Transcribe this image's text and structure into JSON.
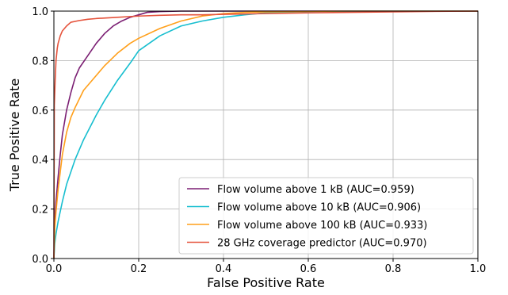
{
  "chart_data": {
    "type": "line",
    "title": "",
    "xlabel": "False Positive Rate",
    "ylabel": "True Positive Rate",
    "xlim": [
      0.0,
      1.0
    ],
    "ylim": [
      0.0,
      1.0
    ],
    "x_ticks": [
      0.0,
      0.2,
      0.4,
      0.6,
      0.8,
      1.0
    ],
    "y_ticks": [
      0.0,
      0.2,
      0.4,
      0.6,
      0.8,
      1.0
    ],
    "x_tick_labels": [
      "0.0",
      "0.2",
      "0.4",
      "0.6",
      "0.8",
      "1.0"
    ],
    "y_tick_labels": [
      "0.0",
      "0.2",
      "0.4",
      "0.6",
      "0.8",
      "1.0"
    ],
    "grid": true,
    "legend_position": "lower-right",
    "series": [
      {
        "name": "Flow volume above 1 kB (AUC=0.959)",
        "color": "#7b1f73",
        "points": [
          [
            0.0,
            0.0
          ],
          [
            0.002,
            0.15
          ],
          [
            0.005,
            0.23
          ],
          [
            0.01,
            0.33
          ],
          [
            0.015,
            0.42
          ],
          [
            0.02,
            0.5
          ],
          [
            0.03,
            0.6
          ],
          [
            0.04,
            0.67
          ],
          [
            0.05,
            0.73
          ],
          [
            0.06,
            0.77
          ],
          [
            0.08,
            0.82
          ],
          [
            0.1,
            0.87
          ],
          [
            0.12,
            0.91
          ],
          [
            0.14,
            0.94
          ],
          [
            0.16,
            0.96
          ],
          [
            0.18,
            0.975
          ],
          [
            0.2,
            0.985
          ],
          [
            0.22,
            0.995
          ],
          [
            0.25,
            0.998
          ],
          [
            0.3,
            1.0
          ],
          [
            1.0,
            1.0
          ]
        ]
      },
      {
        "name": "Flow volume above 10 kB (AUC=0.906)",
        "color": "#17becf",
        "points": [
          [
            0.0,
            0.0
          ],
          [
            0.002,
            0.06
          ],
          [
            0.005,
            0.1
          ],
          [
            0.01,
            0.15
          ],
          [
            0.02,
            0.23
          ],
          [
            0.03,
            0.3
          ],
          [
            0.05,
            0.4
          ],
          [
            0.07,
            0.48
          ],
          [
            0.1,
            0.58
          ],
          [
            0.12,
            0.64
          ],
          [
            0.15,
            0.72
          ],
          [
            0.18,
            0.79
          ],
          [
            0.2,
            0.84
          ],
          [
            0.25,
            0.9
          ],
          [
            0.3,
            0.94
          ],
          [
            0.35,
            0.96
          ],
          [
            0.4,
            0.975
          ],
          [
            0.45,
            0.985
          ],
          [
            0.5,
            0.993
          ],
          [
            0.6,
            0.998
          ],
          [
            0.7,
            1.0
          ],
          [
            1.0,
            1.0
          ]
        ]
      },
      {
        "name": "Flow volume above 100 kB (AUC=0.933)",
        "color": "#ff9f1a",
        "points": [
          [
            0.0,
            0.0
          ],
          [
            0.002,
            0.12
          ],
          [
            0.005,
            0.19
          ],
          [
            0.01,
            0.28
          ],
          [
            0.015,
            0.35
          ],
          [
            0.02,
            0.42
          ],
          [
            0.03,
            0.51
          ],
          [
            0.04,
            0.57
          ],
          [
            0.05,
            0.61
          ],
          [
            0.07,
            0.68
          ],
          [
            0.1,
            0.74
          ],
          [
            0.12,
            0.78
          ],
          [
            0.15,
            0.83
          ],
          [
            0.18,
            0.87
          ],
          [
            0.2,
            0.89
          ],
          [
            0.25,
            0.93
          ],
          [
            0.3,
            0.96
          ],
          [
            0.35,
            0.98
          ],
          [
            0.4,
            0.99
          ],
          [
            0.45,
            0.995
          ],
          [
            0.5,
            0.997
          ],
          [
            0.6,
            0.999
          ],
          [
            0.7,
            1.0
          ],
          [
            1.0,
            1.0
          ]
        ]
      },
      {
        "name": "28 GHz coverage predictor (AUC=0.970)",
        "color": "#e5533c",
        "points": [
          [
            0.0,
            0.0
          ],
          [
            0.001,
            0.62
          ],
          [
            0.003,
            0.72
          ],
          [
            0.005,
            0.8
          ],
          [
            0.008,
            0.85
          ],
          [
            0.01,
            0.87
          ],
          [
            0.015,
            0.9
          ],
          [
            0.02,
            0.92
          ],
          [
            0.03,
            0.94
          ],
          [
            0.04,
            0.955
          ],
          [
            0.06,
            0.962
          ],
          [
            0.08,
            0.967
          ],
          [
            0.1,
            0.97
          ],
          [
            0.15,
            0.975
          ],
          [
            0.2,
            0.98
          ],
          [
            0.25,
            0.983
          ],
          [
            0.3,
            0.985
          ],
          [
            0.35,
            0.985
          ],
          [
            0.4,
            0.987
          ],
          [
            0.5,
            0.99
          ],
          [
            0.6,
            0.993
          ],
          [
            0.7,
            0.995
          ],
          [
            0.8,
            0.997
          ],
          [
            0.9,
            0.999
          ],
          [
            1.0,
            1.0
          ]
        ]
      }
    ]
  }
}
